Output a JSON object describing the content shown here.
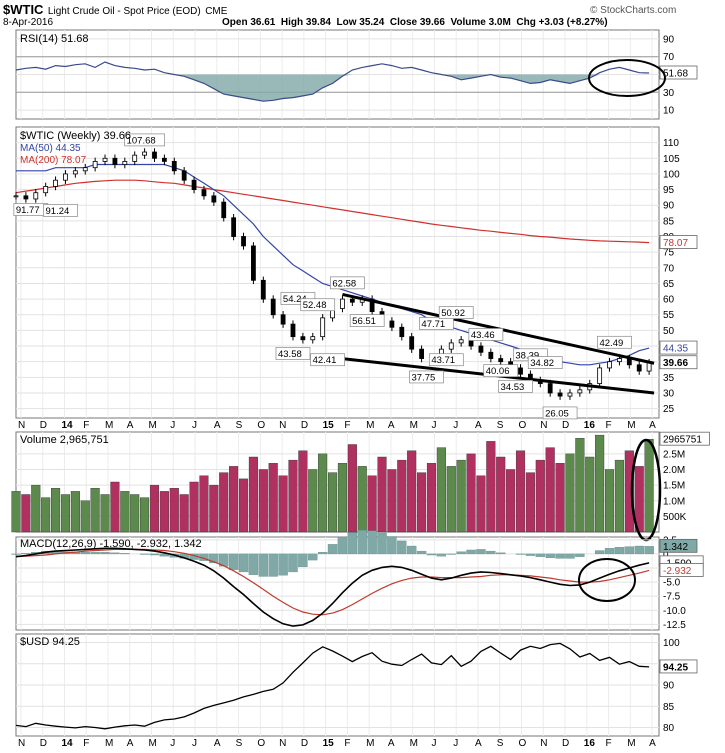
{
  "header": {
    "symbol": "$WTIC",
    "name": "Light Crude Oil - Spot Price (EOD)",
    "exchange": "CME",
    "date": "8-Apr-2016",
    "ohlc": "Open 36.61  High 39.84  Low 35.24  Close 39.66  Volume 3.0M  Chg +3.03 (+8.27%)",
    "watermark": "© StockCharts.com"
  },
  "x_axis": {
    "labels": [
      "N",
      "D",
      "14",
      "F",
      "M",
      "A",
      "M",
      "J",
      "J",
      "A",
      "S",
      "O",
      "N",
      "D",
      "15",
      "F",
      "M",
      "A",
      "M",
      "J",
      "J",
      "A",
      "S",
      "O",
      "N",
      "D",
      "16",
      "F",
      "M",
      "A"
    ]
  },
  "chart_data": [
    {
      "type": "line",
      "panel": "rsi",
      "legend": "RSI(14) 51.68",
      "ylim": [
        0,
        100
      ],
      "y_ticks": [
        10,
        30,
        50,
        70,
        90
      ],
      "ref_lines": [
        30,
        70
      ],
      "last_value_label": "51.68",
      "x": [
        0,
        2,
        4,
        6,
        8,
        10,
        12,
        14,
        16,
        18,
        20,
        22,
        24,
        26,
        28,
        30,
        32,
        34,
        36,
        38,
        40,
        42,
        44,
        46,
        48,
        50,
        52,
        54,
        56,
        58,
        60,
        62,
        64,
        66,
        68,
        70,
        72,
        74,
        76,
        78,
        80,
        82,
        84,
        86,
        88,
        90,
        92,
        94,
        96,
        98,
        100,
        102,
        104,
        106,
        108,
        110,
        112,
        114,
        116,
        118,
        120,
        122,
        124,
        126,
        128
      ],
      "values": [
        55,
        57,
        58,
        56,
        60,
        59,
        61,
        62,
        58,
        64,
        60,
        58,
        57,
        55,
        56,
        52,
        50,
        48,
        44,
        40,
        34,
        28,
        26,
        24,
        22,
        20,
        21,
        23,
        24,
        26,
        28,
        35,
        40,
        48,
        55,
        58,
        60,
        62,
        60,
        57,
        58,
        55,
        52,
        50,
        48,
        44,
        46,
        48,
        50,
        47,
        46,
        43,
        40,
        41,
        44,
        42,
        40,
        43,
        46,
        52,
        56,
        58,
        55,
        52,
        51.68
      ]
    },
    {
      "type": "line",
      "panel": "price",
      "legend": "$WTIC (Weekly) 39.66",
      "ma50_label": "MA(50) 44.35",
      "ma200_label": "MA(200) 78.07",
      "ylim": [
        22,
        115
      ],
      "y_ticks": [
        25,
        30,
        35,
        40,
        45,
        50,
        55,
        60,
        65,
        70,
        75,
        80,
        85,
        90,
        95,
        100,
        105,
        110
      ],
      "price_tag": "39.66",
      "ma50_tag": "44.35",
      "ma200_tag": "78.07",
      "x": [
        0,
        2,
        4,
        6,
        8,
        10,
        12,
        14,
        16,
        18,
        20,
        22,
        24,
        26,
        28,
        30,
        32,
        34,
        36,
        38,
        40,
        42,
        44,
        46,
        48,
        50,
        52,
        54,
        56,
        58,
        60,
        62,
        64,
        66,
        68,
        70,
        72,
        74,
        76,
        78,
        80,
        82,
        84,
        86,
        88,
        90,
        92,
        94,
        96,
        98,
        100,
        102,
        104,
        106,
        108,
        110,
        112,
        114,
        116,
        118,
        120,
        122,
        124,
        126,
        128
      ],
      "values": [
        93,
        92,
        94,
        96,
        98,
        100,
        101,
        102,
        104,
        105,
        103,
        104,
        106,
        107,
        105,
        104,
        101,
        98,
        95,
        93,
        91,
        86,
        80,
        77,
        66,
        60,
        55,
        52,
        48,
        47,
        48,
        54,
        57,
        60,
        59,
        60,
        56,
        53,
        51,
        48,
        44,
        41,
        40,
        44,
        46,
        47,
        45,
        43,
        41,
        40,
        38,
        36,
        34,
        33,
        30,
        29,
        30,
        31,
        33,
        38,
        40,
        41,
        39,
        37,
        39.66
      ],
      "ma50": [
        101,
        101,
        101,
        101,
        102,
        102,
        102,
        102,
        103,
        103,
        103,
        103,
        103,
        103,
        103,
        103,
        102,
        101,
        99,
        97,
        95,
        93,
        90,
        87,
        84,
        80,
        77,
        74,
        71,
        69,
        67,
        65,
        64,
        63,
        62,
        61,
        60,
        59,
        58,
        57,
        56,
        55,
        53,
        52,
        51,
        50,
        49,
        48,
        47,
        46,
        45,
        44,
        43,
        42,
        41,
        40,
        39.5,
        39,
        39,
        39.5,
        40,
        41,
        42,
        43.5,
        44.35
      ],
      "ma200": [
        94,
        94.5,
        95,
        95.5,
        96,
        96.5,
        97,
        97.3,
        97.6,
        97.8,
        98,
        98,
        98,
        97.8,
        97.5,
        97.2,
        97,
        96.5,
        96,
        95.5,
        95,
        94.5,
        94,
        93.5,
        93,
        92.5,
        92,
        91.5,
        91,
        90.5,
        90,
        89.5,
        89,
        88.5,
        88,
        87.5,
        87,
        86.5,
        86,
        85.5,
        85,
        84.5,
        84,
        83.6,
        83.2,
        82.8,
        82.4,
        82,
        81.7,
        81.3,
        81,
        80.7,
        80.3,
        80,
        79.8,
        79.5,
        79.2,
        79,
        78.8,
        78.6,
        78.5,
        78.4,
        78.3,
        78.2,
        78.07
      ],
      "trendline_upper": [
        {
          "x": 66,
          "y": 61.5
        },
        {
          "x": 129,
          "y": 39.5
        }
      ],
      "trendline_lower": [
        {
          "x": 60,
          "y": 42
        },
        {
          "x": 129,
          "y": 30
        }
      ],
      "annotations": [
        {
          "text": "107.68",
          "x": 26,
          "y": 107.68,
          "pos": "above"
        },
        {
          "text": "91.77",
          "x": 3,
          "y": 91.5,
          "pos": "below"
        },
        {
          "text": "91.24",
          "x": 9,
          "y": 91.2,
          "pos": "below"
        },
        {
          "text": "43.58",
          "x": 56,
          "y": 45.5,
          "pos": "below"
        },
        {
          "text": "54.24",
          "x": 57,
          "y": 57,
          "pos": "above"
        },
        {
          "text": "52.48",
          "x": 61,
          "y": 55,
          "pos": "above"
        },
        {
          "text": "42.41",
          "x": 63,
          "y": 43.5,
          "pos": "below"
        },
        {
          "text": "62.58",
          "x": 67,
          "y": 62,
          "pos": "above"
        },
        {
          "text": "56.51",
          "x": 71,
          "y": 56,
          "pos": "below"
        },
        {
          "text": "47.71",
          "x": 85,
          "y": 49,
          "pos": "above"
        },
        {
          "text": "50.92",
          "x": 89,
          "y": 52.5,
          "pos": "above"
        },
        {
          "text": "43.71",
          "x": 87,
          "y": 43.5,
          "pos": "below"
        },
        {
          "text": "37.75",
          "x": 83,
          "y": 38,
          "pos": "below"
        },
        {
          "text": "43.46",
          "x": 95,
          "y": 45.5,
          "pos": "above"
        },
        {
          "text": "40.06",
          "x": 98,
          "y": 40,
          "pos": "below"
        },
        {
          "text": "38.39",
          "x": 104,
          "y": 39,
          "pos": "above"
        },
        {
          "text": "34.82",
          "x": 107,
          "y": 36.5,
          "pos": "above"
        },
        {
          "text": "34.53",
          "x": 101,
          "y": 35,
          "pos": "below"
        },
        {
          "text": "26.05",
          "x": 110,
          "y": 26.5,
          "pos": "below"
        },
        {
          "text": "42.49",
          "x": 121,
          "y": 43,
          "pos": "above"
        }
      ]
    },
    {
      "type": "bar",
      "panel": "volume",
      "legend": "Volume 2,965,751",
      "ylim": [
        0,
        3.2
      ],
      "y_ticks": [
        0.5,
        1.0,
        1.5,
        2.0,
        2.5
      ],
      "y_tick_labels": [
        "500K",
        "1.0M",
        "1.5M",
        "2.0M",
        "2.5M"
      ],
      "last_value_label": "2965751",
      "x": [
        0,
        2,
        4,
        6,
        8,
        10,
        12,
        14,
        16,
        18,
        20,
        22,
        24,
        26,
        28,
        30,
        32,
        34,
        36,
        38,
        40,
        42,
        44,
        46,
        48,
        50,
        52,
        54,
        56,
        58,
        60,
        62,
        64,
        66,
        68,
        70,
        72,
        74,
        76,
        78,
        80,
        82,
        84,
        86,
        88,
        90,
        92,
        94,
        96,
        98,
        100,
        102,
        104,
        106,
        108,
        110,
        112,
        114,
        116,
        118,
        120,
        122,
        124,
        126,
        128
      ],
      "values": [
        1.3,
        1.2,
        1.5,
        1.1,
        1.4,
        1.2,
        1.3,
        1.0,
        1.4,
        1.2,
        1.6,
        1.3,
        1.2,
        1.1,
        1.5,
        1.3,
        1.4,
        1.2,
        1.6,
        1.8,
        1.5,
        1.9,
        2.1,
        1.7,
        2.4,
        2.0,
        2.2,
        1.8,
        2.3,
        2.6,
        2.0,
        2.5,
        1.9,
        2.2,
        2.8,
        2.1,
        1.8,
        2.4,
        2.0,
        2.3,
        2.6,
        1.9,
        2.2,
        2.7,
        2.1,
        2.3,
        2.5,
        1.8,
        2.9,
        2.4,
        2.0,
        2.6,
        1.9,
        2.3,
        2.7,
        2.2,
        2.5,
        3.0,
        2.4,
        3.1,
        2.0,
        2.3,
        2.6,
        2.1,
        2.97
      ],
      "up_color": "#5b8a4c",
      "down_color": "#b03060"
    },
    {
      "type": "line",
      "panel": "macd",
      "legend": "MACD(12,26,9) -1.590, -2.932, 1.342",
      "ylim": [
        -13.5,
        3
      ],
      "y_ticks": [
        2.5,
        0,
        -2.5,
        -5.0,
        -7.5,
        -10.0,
        -12.5
      ],
      "y_tick_labels": [
        "2.5",
        "0",
        "-2.5",
        "-5.0",
        "-7.5",
        "-10.0",
        "-12.5"
      ],
      "tags": [
        "1.342",
        "-1.590",
        "-2.932"
      ],
      "x": [
        0,
        2,
        4,
        6,
        8,
        10,
        12,
        14,
        16,
        18,
        20,
        22,
        24,
        26,
        28,
        30,
        32,
        34,
        36,
        38,
        40,
        42,
        44,
        46,
        48,
        50,
        52,
        54,
        56,
        58,
        60,
        62,
        64,
        66,
        68,
        70,
        72,
        74,
        76,
        78,
        80,
        82,
        84,
        86,
        88,
        90,
        92,
        94,
        96,
        98,
        100,
        102,
        104,
        106,
        108,
        110,
        112,
        114,
        116,
        118,
        120,
        122,
        124,
        126,
        128
      ],
      "macd": [
        -0.5,
        -0.3,
        0,
        0.3,
        0.5,
        0.6,
        0.7,
        0.8,
        0.9,
        1.0,
        1.0,
        0.9,
        0.8,
        0.7,
        0.5,
        0.2,
        -0.2,
        -0.7,
        -1.3,
        -2.0,
        -3.0,
        -4.3,
        -5.8,
        -7.2,
        -8.8,
        -10.3,
        -11.5,
        -12.4,
        -12.8,
        -12.6,
        -11.8,
        -10.5,
        -8.8,
        -6.9,
        -5.2,
        -3.8,
        -2.9,
        -2.4,
        -2.2,
        -2.4,
        -2.9,
        -3.6,
        -4.3,
        -4.6,
        -4.3,
        -3.8,
        -3.4,
        -3.2,
        -3.3,
        -3.5,
        -3.7,
        -3.9,
        -4.2,
        -4.6,
        -5.0,
        -5.4,
        -5.6,
        -5.5,
        -5.0,
        -4.3,
        -3.6,
        -3.0,
        -2.5,
        -2.0,
        -1.59
      ],
      "signal": [
        -0.4,
        -0.4,
        -0.3,
        -0.2,
        0,
        0.2,
        0.3,
        0.5,
        0.6,
        0.7,
        0.8,
        0.8,
        0.8,
        0.8,
        0.7,
        0.6,
        0.4,
        0.1,
        -0.3,
        -0.8,
        -1.4,
        -2.1,
        -3.0,
        -4.0,
        -5.1,
        -6.3,
        -7.5,
        -8.6,
        -9.6,
        -10.3,
        -10.7,
        -10.8,
        -10.5,
        -9.9,
        -9.0,
        -8.0,
        -7.0,
        -6.1,
        -5.3,
        -4.7,
        -4.3,
        -4.1,
        -4.1,
        -4.2,
        -4.2,
        -4.2,
        -4.1,
        -4.0,
        -3.8,
        -3.7,
        -3.7,
        -3.8,
        -3.9,
        -4.1,
        -4.3,
        -4.6,
        -4.8,
        -5.0,
        -5.0,
        -4.9,
        -4.6,
        -4.2,
        -3.8,
        -3.4,
        -2.932
      ],
      "histogram": [
        -0.1,
        0.1,
        0.3,
        0.5,
        0.5,
        0.4,
        0.4,
        0.3,
        0.3,
        0.3,
        0.2,
        0.1,
        0,
        -0.1,
        -0.2,
        -0.4,
        -0.6,
        -0.8,
        -1.0,
        -1.2,
        -1.6,
        -2.2,
        -2.8,
        -3.2,
        -3.7,
        -4.0,
        -4.0,
        -3.8,
        -3.2,
        -2.3,
        -1.1,
        0.3,
        1.7,
        3.0,
        3.8,
        4.2,
        4.1,
        3.7,
        3.1,
        2.3,
        1.4,
        0.5,
        -0.2,
        -0.4,
        -0.1,
        0.4,
        0.7,
        0.8,
        0.5,
        0.2,
        0,
        -0.1,
        -0.3,
        -0.5,
        -0.7,
        -0.8,
        -0.8,
        -0.5,
        0,
        0.6,
        1.0,
        1.2,
        1.3,
        1.4,
        1.342
      ]
    },
    {
      "type": "line",
      "panel": "usd",
      "legend": "$USD 94.25",
      "ylim": [
        78,
        102
      ],
      "y_ticks": [
        80,
        85,
        90,
        95,
        100
      ],
      "last_value_label": "94.25",
      "x": [
        0,
        2,
        4,
        6,
        8,
        10,
        12,
        14,
        16,
        18,
        20,
        22,
        24,
        26,
        28,
        30,
        32,
        34,
        36,
        38,
        40,
        42,
        44,
        46,
        48,
        50,
        52,
        54,
        56,
        58,
        60,
        62,
        64,
        66,
        68,
        70,
        72,
        74,
        76,
        78,
        80,
        82,
        84,
        86,
        88,
        90,
        92,
        94,
        96,
        98,
        100,
        102,
        104,
        106,
        108,
        110,
        112,
        114,
        116,
        118,
        120,
        122,
        124,
        126,
        128
      ],
      "values": [
        80.5,
        80.2,
        81,
        80.6,
        80.3,
        80.1,
        79.9,
        80.2,
        80.0,
        79.7,
        80.1,
        80.4,
        80.6,
        80.3,
        81.2,
        81.8,
        82.0,
        82.5,
        83.4,
        84.5,
        85.2,
        85.8,
        86.4,
        87.2,
        87.8,
        88.5,
        89.0,
        90.5,
        93.0,
        95.2,
        97.5,
        99.0,
        98.0,
        96.8,
        95.5,
        96.7,
        97.6,
        95.6,
        94.9,
        94.6,
        96.0,
        97.3,
        95.2,
        94.8,
        96.9,
        94.4,
        95.6,
        97.9,
        99.1,
        97.5,
        96.0,
        98.2,
        99.1,
        98.6,
        99.5,
        99.8,
        98.5,
        96.6,
        97.4,
        95.8,
        96.5,
        94.9,
        95.5,
        94.4,
        94.25
      ]
    }
  ]
}
